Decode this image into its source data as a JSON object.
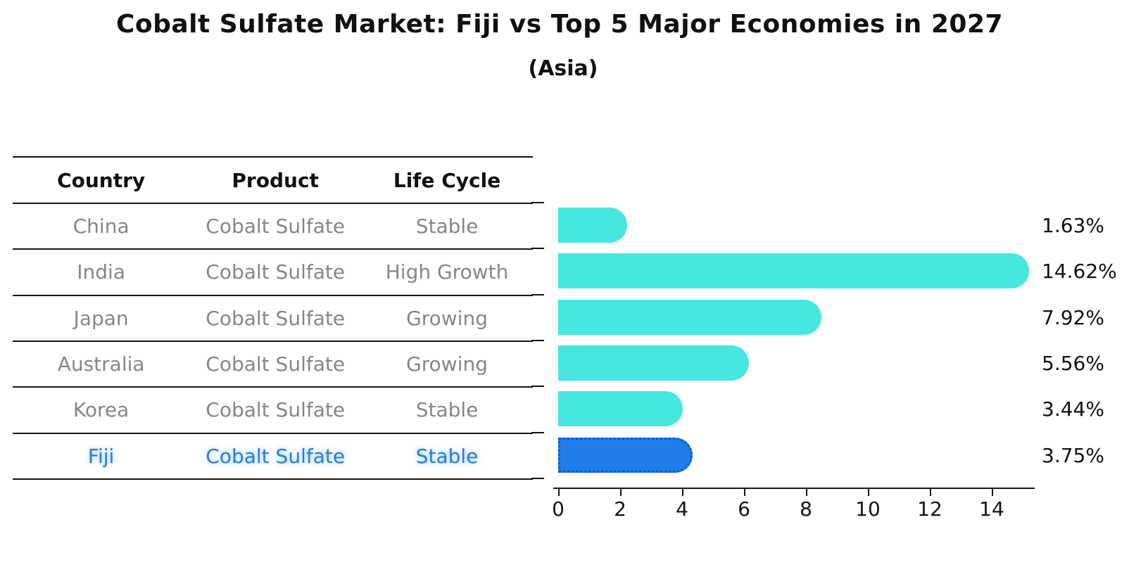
{
  "title": "Cobalt Sulfate Market: Fiji vs Top 5 Major Economies in 2027",
  "subtitle": "(Asia)",
  "table": {
    "headers": [
      "Country",
      "Product",
      "Life Cycle"
    ],
    "rows": [
      {
        "country": "China",
        "product": "Cobalt Sulfate",
        "life_cycle": "Stable",
        "highlight": false
      },
      {
        "country": "India",
        "product": "Cobalt Sulfate",
        "life_cycle": "High Growth",
        "highlight": false
      },
      {
        "country": "Japan",
        "product": "Cobalt Sulfate",
        "life_cycle": "Growing",
        "highlight": false
      },
      {
        "country": "Australia",
        "product": "Cobalt Sulfate",
        "life_cycle": "Growing",
        "highlight": false
      },
      {
        "country": "Korea",
        "product": "Cobalt Sulfate",
        "life_cycle": "Stable",
        "highlight": false
      },
      {
        "country": "Fiji",
        "product": "Cobalt Sulfate",
        "life_cycle": "Stable",
        "highlight": true
      }
    ]
  },
  "chart_data": {
    "type": "bar",
    "orientation": "horizontal",
    "title": "Cobalt Sulfate Market: Fiji vs Top 5 Major Economies in 2027",
    "subtitle": "(Asia)",
    "categories": [
      "China",
      "India",
      "Japan",
      "Australia",
      "Korea",
      "Fiji"
    ],
    "values": [
      1.63,
      14.62,
      7.92,
      5.56,
      3.44,
      3.75
    ],
    "value_labels": [
      "1.63%",
      "14.62%",
      "7.92%",
      "5.56%",
      "3.44%",
      "3.75%"
    ],
    "x_ticks": [
      "0",
      "2",
      "4",
      "6",
      "8",
      "10",
      "12",
      "14"
    ],
    "xlim": [
      0,
      15.4
    ],
    "grid": false,
    "legend": false,
    "bar_color": "#46e6e1",
    "highlight_bar_color": "#1e7deb",
    "highlight_border_color": "#0d55d2",
    "highlight_text_color": "#2e7fc9",
    "highlight_index": 5
  }
}
